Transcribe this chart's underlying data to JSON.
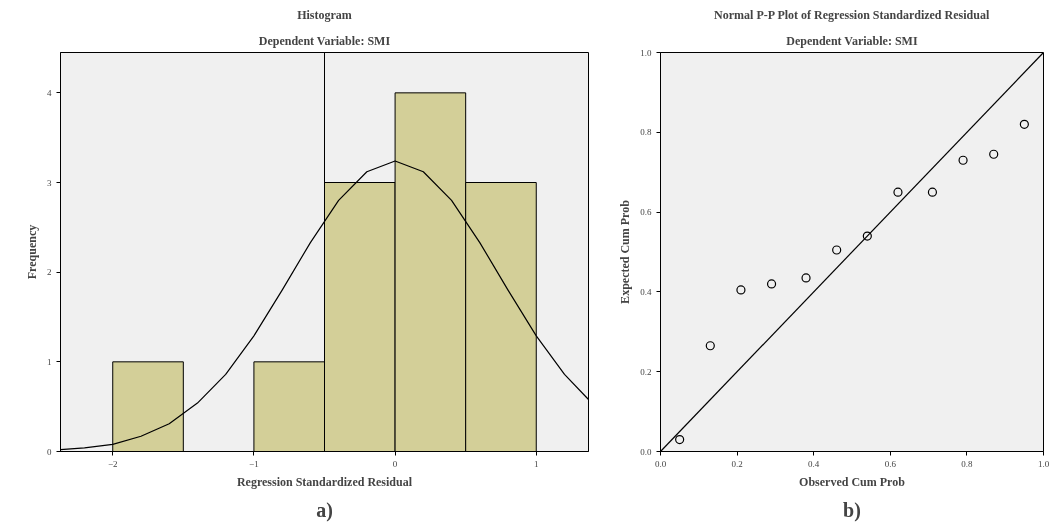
{
  "chart_data": [
    {
      "type": "histogram",
      "title": "Histogram",
      "subtitle": "Dependent Variable: SMI",
      "xlabel": "Regression Standardized Residual",
      "ylabel": "Frequency",
      "bins": [
        -2,
        -1.5,
        -1,
        -0.5,
        0,
        0.5,
        1
      ],
      "values": [
        1,
        0,
        1,
        3,
        4,
        3
      ],
      "color": "#d3cf98",
      "series": [
        {
          "type": "line",
          "color": "#000000",
          "x": [
            -2.37,
            -2.2,
            -2.0,
            -1.8,
            -1.6,
            -1.4,
            -1.2,
            -1.0,
            -0.8,
            -0.6,
            -0.4,
            -0.2,
            0,
            0.2,
            0.4,
            0.6,
            0.8,
            1.0,
            1.2,
            1.37
          ],
          "values": [
            0.02,
            0.04,
            0.08,
            0.17,
            0.31,
            0.54,
            0.86,
            1.29,
            1.8,
            2.33,
            2.8,
            3.12,
            3.24,
            3.12,
            2.8,
            2.33,
            1.8,
            1.29,
            0.86,
            0.58
          ]
        }
      ],
      "ref_lines": [
        {
          "axis": "x",
          "value": -0.5,
          "label": null,
          "color": "#000000"
        }
      ],
      "xlim": [
        -2.37,
        1.37
      ],
      "ylim": [
        0,
        4.45
      ],
      "xticks": [
        -2,
        -1,
        0,
        1
      ],
      "yticks": [
        0,
        1,
        2,
        3,
        4
      ],
      "grid": false,
      "annotations": [
        "a)"
      ]
    },
    {
      "type": "scatter",
      "title": "Normal P-P Plot of Regression Standardized Residual",
      "subtitle": "Dependent Variable: SMI",
      "xlabel": "Observed Cum Prob",
      "ylabel": "Expected Cum Prob",
      "marker": "circle",
      "series": [
        {
          "type": "scatter",
          "color": "#000000",
          "x": [
            0.05,
            0.13,
            0.21,
            0.29,
            0.38,
            0.46,
            0.54,
            0.62,
            0.71,
            0.79,
            0.87,
            0.95
          ],
          "values": [
            0.03,
            0.265,
            0.405,
            0.42,
            0.435,
            0.505,
            0.54,
            0.65,
            0.65,
            0.73,
            0.745,
            0.82
          ]
        },
        {
          "type": "line",
          "color": "#000000",
          "marker": "none",
          "x": [
            0,
            1
          ],
          "values": [
            0,
            1
          ]
        }
      ],
      "xlim": [
        0,
        1
      ],
      "ylim": [
        0,
        1
      ],
      "xticks": [
        {
          "value": 0,
          "label": "0.0"
        },
        0.2,
        0.4,
        0.6,
        0.8,
        {
          "value": 1,
          "label": "1.0"
        }
      ],
      "yticks": [
        {
          "value": 0,
          "label": "0.0"
        },
        0.2,
        0.4,
        0.6,
        0.8,
        {
          "value": 1,
          "label": "1.0"
        }
      ],
      "grid": false,
      "annotations": [
        "b)"
      ]
    }
  ]
}
